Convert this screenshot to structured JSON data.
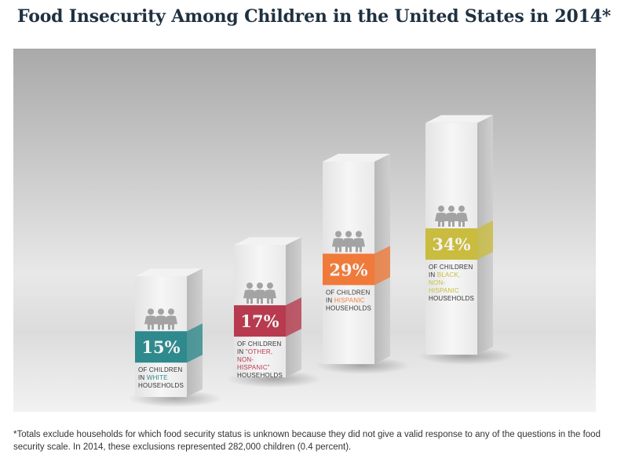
{
  "title": "Food Insecurity Among Children in the United States in 2014*",
  "footnote": "*Totals exclude households for which food security status is unknown because they did not give a valid response to any of the questions in the food security scale. In 2014, these exclusions represented 282,000 children (0.4 percent).",
  "chart_data": {
    "type": "bar",
    "title": "Food Insecurity Among Children in the United States in 2014*",
    "categories": [
      "White",
      "Other, non-Hispanic",
      "Hispanic",
      "Black, non-Hispanic"
    ],
    "values": [
      15,
      17,
      29,
      34
    ],
    "unit": "%",
    "value_labels": [
      "15%",
      "17%",
      "29%",
      "34%"
    ],
    "captions": [
      {
        "lines": [
          "OF CHILDREN",
          "IN |WHITE|",
          "HOUSEHOLDS"
        ]
      },
      {
        "lines": [
          "OF CHILDREN",
          "IN |\"OTHER,|",
          "|NON-|",
          "|HISPANIC\"|",
          "HOUSEHOLDS"
        ]
      },
      {
        "lines": [
          "OF CHILDREN",
          "IN |HISPANIC|",
          "HOUSEHOLDS"
        ]
      },
      {
        "lines": [
          "OF CHILDREN",
          "IN |BLACK,|",
          "|NON-|",
          "|HISPANIC|",
          "HOUSEHOLDS"
        ]
      }
    ],
    "colors": [
      "#2e8a8c",
      "#b83a4e",
      "#f07a3a",
      "#c9bc3e"
    ],
    "label_colors": [
      "#f3f3f3",
      "#f3f3f3",
      "#f3f3f3",
      "#f3f3f3"
    ],
    "icon": "children-icon"
  }
}
